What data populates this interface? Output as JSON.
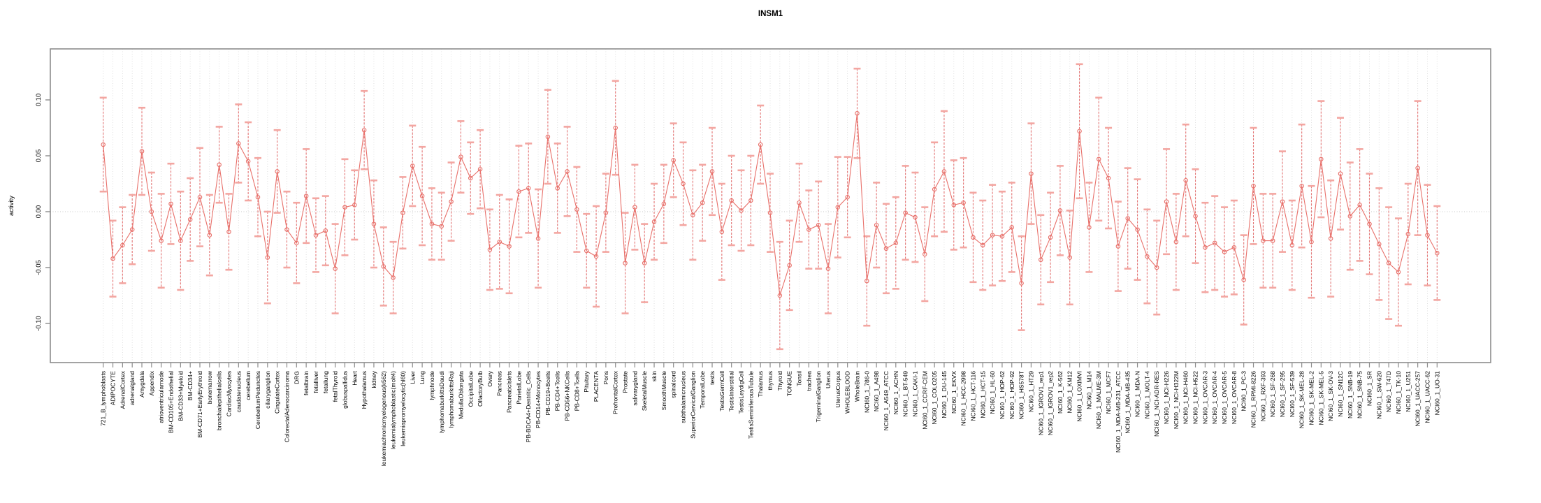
{
  "title": "INSM1",
  "chart_data": {
    "type": "line",
    "title": "INSM1",
    "xlabel": "",
    "ylabel": "activity",
    "ylim": [
      -0.135,
      0.146
    ],
    "yticks": [
      0.1,
      0.05,
      0.0,
      -0.05,
      -0.1
    ],
    "ytick_labels": [
      "0.10",
      "0.05",
      "0.00",
      "-0.05",
      "-0.10"
    ],
    "grid": "vertical-dotted-per-category-plus-zero-line",
    "legend_position": "none",
    "marker": "open-circle",
    "has_error_bars": true,
    "series_color": "#e8706a",
    "errorbar_stem_color": "#e25f5f",
    "errorbar_cap_color": "#f3a6a1",
    "grid_color": "#dcdcdc",
    "border_color": "#8c8c8c",
    "categories": [
      "721_B_lymphoblasts",
      "ADIPOCYTE",
      "AdrenalCortex",
      "adrenalgland",
      "Amygdala",
      "Appendix",
      "atrioventricularnode",
      "BM-CD105+Endothelial",
      "BM-CD33+Myeloid",
      "BM-CD34+",
      "BM-CD71+EarlyErythroid",
      "bonemarrow",
      "bronchialepithelialcells",
      "CardiacMyocytes",
      "caudatenucleus",
      "cerebellum",
      "CerebellumPeduncles",
      "ciliaryganglion",
      "CingulateCortex",
      "ColorectalAdenocarcinoma",
      "DRG",
      "fetalbrain",
      "fetalliver",
      "fetallung",
      "fetalThyroid",
      "globuspallidus",
      "Heart",
      "Hypothalamus",
      "kidney",
      "leukemiachronicmyelogenous(k562)",
      "leukemialymphoblastic(molt4)",
      "leukemiapromyelocytic(hl60)",
      "Liver",
      "Lung",
      "lymphnode",
      "lymphomaburkittsDaudi",
      "lymphomaburkittsRaji",
      "MedullaOblongata",
      "OccipitalLobe",
      "OlfactoryBulb",
      "Ovary",
      "Pancreas",
      "PancreaticIslets",
      "ParietalLobe",
      "PB-BDCA4+Dentritic_Cells",
      "PB-CD14+Monocytes",
      "PB-CD19+Bcells",
      "PB-CD4+Tcells",
      "PB-CD56+NKCells",
      "PB-CD8+Tcells",
      "Pituitary",
      "PLACENTA",
      "Pons",
      "PrefrontalCortex",
      "Prostate",
      "salivarygland",
      "SkeletalMuscle",
      "skin",
      "SmoothMuscle",
      "spinalcord",
      "subthalamicnucleus",
      "SuperiorCervicalGanglion",
      "TemporalLobe",
      "testis",
      "TestisGermCell",
      "TestisInterstitial",
      "TestisLeydigCell",
      "TestisSeminiferousTubule",
      "Thalamus",
      "thymus",
      "Thyroid",
      "TONGUE",
      "Tonsil",
      "trachea",
      "TrigeminalGanglion",
      "Uterus",
      "UterusCorpus",
      "WHOLEBLOOD",
      "WholeBrain",
      "NCI60_1_786-0",
      "NCI60_1_A498",
      "NCI60_1_A549_ATCC",
      "NCI60_1_ACHN",
      "NCI60_1_BT-549",
      "NCI60_1_CAKI-1",
      "NCI60_1_CCRF-CEM",
      "NCI60_1_COLO205",
      "NCI60_1_DU-145",
      "NCI60_1_EKVX",
      "NCI60_1_HCC-2998",
      "NCI60_1_HCT-116",
      "NCI60_1_HCT-15",
      "NCI60_1_HL-60",
      "NCI60_1_HOP-62",
      "NCI60_1_HOP-92",
      "NCI60_1_HS578T",
      "NCI60_1_HT29",
      "NCI60_1_IGROV1_rep1",
      "NCI60_1_IGROV1_rep2",
      "NCI60_1_K-562",
      "NCI60_1_KM12",
      "NCI60_1_LOXIMVI",
      "NCI60_1_M14",
      "NCI60_1_MALME-3M",
      "NCI60_1_MCF7",
      "NCI60_1_MDA-MB-231_ATCC",
      "NCI60_1_MDA-MB-435",
      "NCI60_1_MDA-N",
      "NCI60_1_MOLT-4",
      "NCI60_1_NCI-ADR-RES",
      "NCI60_1_NCI-H226",
      "NCI60_1_NCI-H322M",
      "NCI60_1_NCI-H460",
      "NCI60_1_NCI-H522",
      "NCI60_1_OVCAR-3",
      "NCI60_1_OVCAR-4",
      "NCI60_1_OVCAR-5",
      "NCI60_1_OVCAR-8",
      "NCI60_1_PC-3",
      "NCI60_1_RPMI-8226",
      "NCI60_1_RXF-393",
      "NCI60_1_SF-268",
      "NCI60_1_SF-295",
      "NCI60_1_SF-539",
      "NCI60_1_SK-MEL-28",
      "NCI60_1_SK-MEL-2",
      "NCI60_1_SK-MEL-5",
      "NCI60_1_SK-OV-3",
      "NCI60_1_SN12C",
      "NCI60_1_SNB-19",
      "NCI60_1_SNB-75",
      "NCI60_1_SR",
      "NCI60_1_SW-620",
      "NCI60_1_T47D",
      "NCI60_1_TK-10",
      "NCI60_1_U251",
      "NCI60_1_UACC-257",
      "NCI60_1_UACC-62",
      "NCI60_1_UO-31"
    ],
    "values": [
      0.06,
      -0.042,
      -0.03,
      -0.016,
      0.054,
      0.0,
      -0.026,
      0.007,
      -0.026,
      -0.007,
      0.013,
      -0.021,
      0.042,
      -0.018,
      0.061,
      0.045,
      0.013,
      -0.041,
      0.036,
      -0.016,
      -0.028,
      0.014,
      -0.021,
      -0.017,
      -0.051,
      0.004,
      0.006,
      0.073,
      -0.011,
      -0.049,
      -0.059,
      -0.001,
      0.041,
      0.014,
      -0.011,
      -0.013,
      0.009,
      0.049,
      0.03,
      0.038,
      -0.034,
      -0.027,
      -0.031,
      0.018,
      0.021,
      -0.024,
      0.067,
      0.021,
      0.036,
      0.002,
      -0.035,
      -0.04,
      -0.001,
      0.075,
      -0.046,
      0.004,
      -0.046,
      -0.009,
      0.007,
      0.046,
      0.025,
      -0.003,
      0.008,
      0.036,
      -0.018,
      0.01,
      0.001,
      0.01,
      0.06,
      -0.001,
      -0.075,
      -0.048,
      0.008,
      -0.016,
      -0.012,
      -0.051,
      0.004,
      0.013,
      0.088,
      -0.062,
      -0.012,
      -0.033,
      -0.028,
      -0.001,
      -0.005,
      -0.038,
      0.02,
      0.036,
      0.006,
      0.008,
      -0.023,
      -0.03,
      -0.021,
      -0.022,
      -0.014,
      -0.064,
      0.034,
      -0.043,
      -0.023,
      0.001,
      -0.041,
      0.072,
      -0.014,
      0.047,
      0.03,
      -0.031,
      -0.006,
      -0.016,
      -0.04,
      -0.05,
      0.009,
      -0.027,
      0.028,
      -0.004,
      -0.032,
      -0.028,
      -0.036,
      -0.032,
      -0.061,
      0.023,
      -0.026,
      -0.026,
      0.009,
      -0.03,
      0.023,
      -0.027,
      0.047,
      -0.024,
      0.034,
      -0.004,
      0.006,
      -0.011,
      -0.029,
      -0.046,
      -0.054,
      -0.02,
      0.039,
      -0.021,
      -0.037
    ],
    "errors": [
      0.042,
      0.034,
      0.034,
      0.031,
      0.039,
      0.035,
      0.042,
      0.036,
      0.044,
      0.037,
      0.044,
      0.036,
      0.034,
      0.034,
      0.035,
      0.035,
      0.035,
      0.041,
      0.037,
      0.034,
      0.036,
      0.042,
      0.033,
      0.031,
      0.04,
      0.043,
      0.031,
      0.035,
      0.039,
      0.035,
      0.032,
      0.032,
      0.036,
      0.044,
      0.032,
      0.03,
      0.035,
      0.032,
      0.032,
      0.035,
      0.036,
      0.042,
      0.042,
      0.041,
      0.04,
      0.044,
      0.042,
      0.04,
      0.04,
      0.038,
      0.033,
      0.045,
      0.035,
      0.042,
      0.045,
      0.038,
      0.035,
      0.034,
      0.035,
      0.033,
      0.037,
      0.04,
      0.034,
      0.039,
      0.043,
      0.04,
      0.036,
      0.04,
      0.035,
      0.035,
      0.048,
      0.04,
      0.035,
      0.035,
      0.039,
      0.04,
      0.045,
      0.036,
      0.04,
      0.04,
      0.038,
      0.04,
      0.041,
      0.042,
      0.04,
      0.042,
      0.042,
      0.054,
      0.04,
      0.04,
      0.04,
      0.04,
      0.045,
      0.04,
      0.04,
      0.042,
      0.045,
      0.04,
      0.04,
      0.04,
      0.042,
      0.06,
      0.04,
      0.055,
      0.045,
      0.04,
      0.045,
      0.045,
      0.042,
      0.042,
      0.047,
      0.043,
      0.05,
      0.042,
      0.04,
      0.042,
      0.04,
      0.042,
      0.04,
      0.052,
      0.042,
      0.042,
      0.045,
      0.04,
      0.055,
      0.05,
      0.052,
      0.052,
      0.05,
      0.048,
      0.05,
      0.045,
      0.05,
      0.05,
      0.048,
      0.045,
      0.06,
      0.045,
      0.042
    ]
  }
}
